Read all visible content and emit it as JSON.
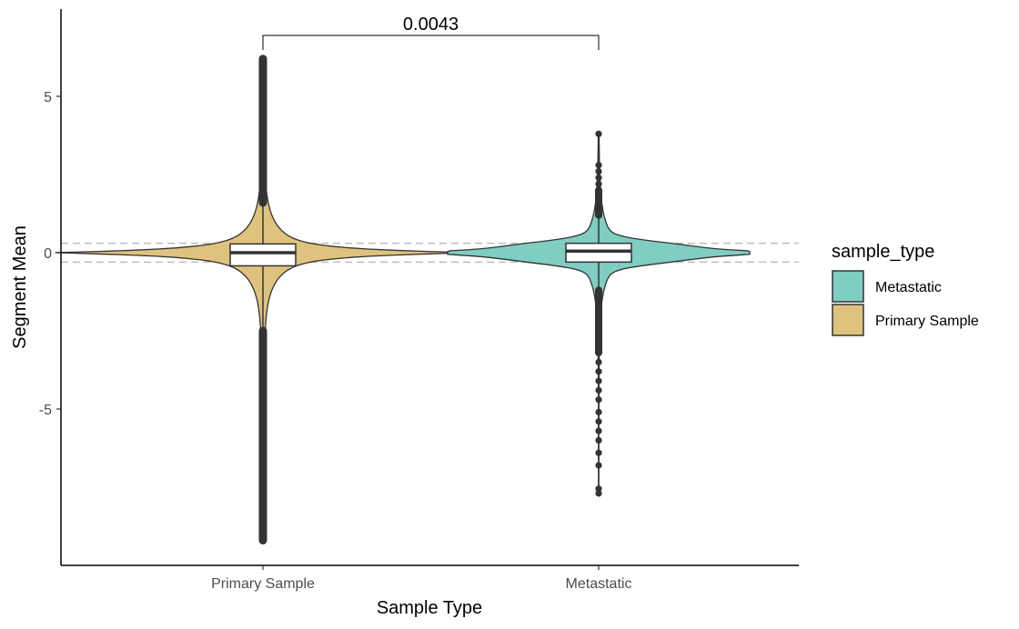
{
  "chart_data": {
    "type": "violin",
    "xlabel": "Sample Type",
    "ylabel": "Segment Mean",
    "categories": [
      "Primary Sample",
      "Metastatic"
    ],
    "ylim": [
      -10,
      7.6
    ],
    "yticks": [
      5,
      0,
      -5
    ],
    "ytick_labels": [
      "5",
      "0",
      "-5"
    ],
    "reference_lines": [
      0.3,
      -0.3
    ],
    "grid": false,
    "legend": {
      "title": "sample_type",
      "position": "right",
      "entries": [
        {
          "label": "Metastatic",
          "color": "#80cdc1"
        },
        {
          "label": "Primary Sample",
          "color": "#dfc27d"
        }
      ]
    },
    "significance": {
      "label": "0.0043",
      "from": "Primary Sample",
      "to": "Metastatic"
    },
    "series": [
      {
        "category": "Primary Sample",
        "color": "#dfc27d",
        "box": {
          "q1": -0.42,
          "median": 0.0,
          "q3": 0.28,
          "whisker_low": -2.5,
          "whisker_high": 1.6
        },
        "outlier_range_high": [
          1.6,
          6.2
        ],
        "outlier_range_low": [
          -9.2,
          -2.5
        ],
        "max": 6.2,
        "min": -9.2
      },
      {
        "category": "Metastatic",
        "color": "#80cdc1",
        "box": {
          "q1": -0.3,
          "median": 0.05,
          "q3": 0.3,
          "whisker_low": -2.1,
          "whisker_high": 1.5
        },
        "outliers": [
          3.8,
          2.8,
          2.6,
          2.4,
          2.2,
          2.0,
          1.8,
          1.6,
          -2.3,
          -2.6,
          -2.9,
          -3.2,
          -3.5,
          -3.8,
          -4.1,
          -4.4,
          -4.7,
          -5.1,
          -5.4,
          -5.7,
          -6.0,
          -6.4,
          -6.8,
          -7.55,
          -7.7
        ],
        "max": 3.8,
        "min": -7.7
      }
    ]
  }
}
